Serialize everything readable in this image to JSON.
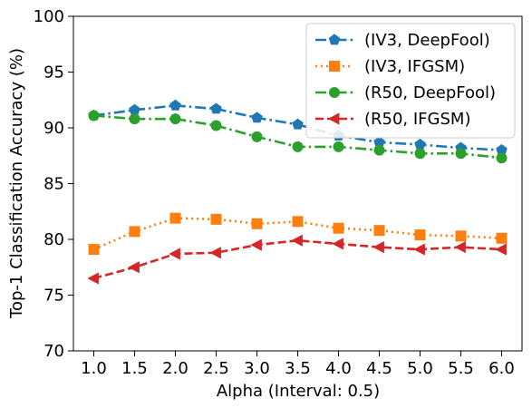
{
  "chart_data": {
    "type": "line",
    "title": "",
    "xlabel": "Alpha (Interval: 0.5)",
    "ylabel": "Top-1 Classification Accuracy (%)",
    "x": [
      1.0,
      1.5,
      2.0,
      2.5,
      3.0,
      3.5,
      4.0,
      4.5,
      5.0,
      5.5,
      6.0
    ],
    "x_tick_labels": [
      "1.0",
      "1.5",
      "2.0",
      "2.5",
      "3.0",
      "3.5",
      "4.0",
      "4.5",
      "5.0",
      "5.5",
      "6.0"
    ],
    "xlim": [
      0.75,
      6.25
    ],
    "ylim": [
      70,
      100
    ],
    "y_ticks": [
      70,
      75,
      80,
      85,
      90,
      95,
      100
    ],
    "grid": false,
    "legend_position": "top-right",
    "series": [
      {
        "name": "(IV3, DeepFool)",
        "color": "#1f77b4",
        "marker": "pentagon",
        "linestyle": "dashdot",
        "values": [
          91.1,
          91.6,
          92.0,
          91.7,
          90.9,
          90.3,
          89.3,
          88.7,
          88.5,
          88.2,
          88.0
        ]
      },
      {
        "name": "(IV3, IFGSM)",
        "color": "#ff7f0e",
        "marker": "square",
        "linestyle": "dotted",
        "values": [
          79.1,
          80.7,
          81.9,
          81.8,
          81.4,
          81.6,
          81.0,
          80.8,
          80.4,
          80.3,
          80.1
        ]
      },
      {
        "name": "(R50, DeepFool)",
        "color": "#2ca02c",
        "marker": "circle",
        "linestyle": "dashdot",
        "values": [
          91.1,
          90.8,
          90.8,
          90.2,
          89.2,
          88.3,
          88.3,
          88.0,
          87.7,
          87.7,
          87.3
        ]
      },
      {
        "name": "(R50, IFGSM)",
        "color": "#d62728",
        "marker": "triangle-left",
        "linestyle": "dashed",
        "values": [
          76.5,
          77.5,
          78.7,
          78.8,
          79.5,
          79.9,
          79.6,
          79.3,
          79.1,
          79.3,
          79.1
        ]
      }
    ]
  }
}
